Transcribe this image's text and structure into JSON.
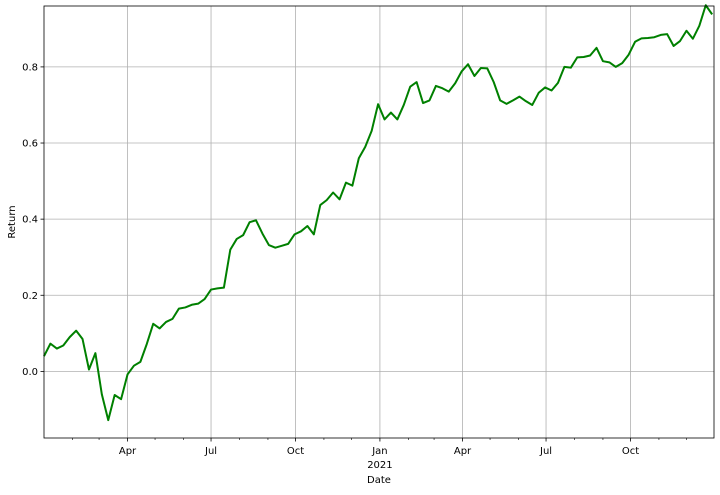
{
  "chart_data": {
    "type": "line",
    "xlabel": "Date",
    "ylabel": "Return",
    "grid": true,
    "line_color": "#008000",
    "xlim": [
      "2020-01-01",
      "2021-12-31"
    ],
    "ylim": [
      -0.175,
      0.96
    ],
    "y_ticks": [
      {
        "value": 0.0,
        "label": "0.0"
      },
      {
        "value": 0.2,
        "label": "0.2"
      },
      {
        "value": 0.4,
        "label": "0.4"
      },
      {
        "value": 0.6,
        "label": "0.6"
      },
      {
        "value": 0.8,
        "label": "0.8"
      }
    ],
    "x_major_ticks": [
      {
        "date": "2020-04-01",
        "label": "Apr"
      },
      {
        "date": "2020-07-01",
        "label": "Jul"
      },
      {
        "date": "2020-10-01",
        "label": "Oct"
      },
      {
        "date": "2021-01-01",
        "label": "Jan",
        "sublabel": "2021"
      },
      {
        "date": "2021-04-01",
        "label": "Apr"
      },
      {
        "date": "2021-07-01",
        "label": "Jul"
      },
      {
        "date": "2021-10-01",
        "label": "Oct"
      }
    ],
    "x_minor_ticks": [
      "2020-02-01",
      "2020-03-01",
      "2020-05-01",
      "2020-06-01",
      "2020-08-01",
      "2020-09-01",
      "2020-11-01",
      "2020-12-01",
      "2021-02-01",
      "2021-03-01",
      "2021-05-01",
      "2021-06-01",
      "2021-08-01",
      "2021-09-01",
      "2021-11-01",
      "2021-12-01"
    ],
    "series": [
      {
        "x": [
          "2020-01-01",
          "2020-01-08",
          "2020-01-15",
          "2020-01-22",
          "2020-01-29",
          "2020-02-05",
          "2020-02-12",
          "2020-02-19",
          "2020-02-26",
          "2020-03-04",
          "2020-03-11",
          "2020-03-18",
          "2020-03-25",
          "2020-04-01",
          "2020-04-08",
          "2020-04-15",
          "2020-04-22",
          "2020-04-29",
          "2020-05-06",
          "2020-05-13",
          "2020-05-20",
          "2020-05-27",
          "2020-06-03",
          "2020-06-10",
          "2020-06-17",
          "2020-06-24",
          "2020-07-01",
          "2020-07-08",
          "2020-07-15",
          "2020-07-22",
          "2020-07-29",
          "2020-08-05",
          "2020-08-12",
          "2020-08-19",
          "2020-08-26",
          "2020-09-02",
          "2020-09-09",
          "2020-09-16",
          "2020-09-23",
          "2020-09-30",
          "2020-10-07",
          "2020-10-14",
          "2020-10-21",
          "2020-10-28",
          "2020-11-04",
          "2020-11-11",
          "2020-11-18",
          "2020-11-25",
          "2020-12-02",
          "2020-12-09",
          "2020-12-16",
          "2020-12-23",
          "2020-12-30",
          "2021-01-06",
          "2021-01-13",
          "2021-01-20",
          "2021-01-27",
          "2021-02-03",
          "2021-02-10",
          "2021-02-17",
          "2021-02-24",
          "2021-03-03",
          "2021-03-10",
          "2021-03-17",
          "2021-03-24",
          "2021-03-31",
          "2021-04-07",
          "2021-04-14",
          "2021-04-21",
          "2021-04-28",
          "2021-05-05",
          "2021-05-12",
          "2021-05-19",
          "2021-05-26",
          "2021-06-02",
          "2021-06-09",
          "2021-06-16",
          "2021-06-23",
          "2021-06-30",
          "2021-07-07",
          "2021-07-14",
          "2021-07-21",
          "2021-07-28",
          "2021-08-04",
          "2021-08-11",
          "2021-08-18",
          "2021-08-25",
          "2021-09-01",
          "2021-09-08",
          "2021-09-15",
          "2021-09-22",
          "2021-09-29",
          "2021-10-06",
          "2021-10-13",
          "2021-10-20",
          "2021-10-27",
          "2021-11-03",
          "2021-11-10",
          "2021-11-17",
          "2021-11-24",
          "2021-12-01",
          "2021-12-08",
          "2021-12-15",
          "2021-12-22",
          "2021-12-29"
        ],
        "y": [
          0.04,
          0.073,
          0.06,
          0.068,
          0.09,
          0.107,
          0.085,
          0.005,
          0.048,
          -0.06,
          -0.128,
          -0.062,
          -0.073,
          -0.008,
          0.015,
          0.025,
          0.072,
          0.125,
          0.113,
          0.13,
          0.138,
          0.165,
          0.168,
          0.175,
          0.178,
          0.19,
          0.215,
          0.218,
          0.22,
          0.32,
          0.348,
          0.358,
          0.392,
          0.397,
          0.362,
          0.332,
          0.325,
          0.33,
          0.335,
          0.36,
          0.368,
          0.382,
          0.36,
          0.437,
          0.45,
          0.47,
          0.452,
          0.496,
          0.488,
          0.56,
          0.59,
          0.632,
          0.702,
          0.662,
          0.68,
          0.662,
          0.7,
          0.748,
          0.76,
          0.705,
          0.712,
          0.75,
          0.744,
          0.735,
          0.757,
          0.788,
          0.807,
          0.776,
          0.797,
          0.796,
          0.76,
          0.712,
          0.703,
          0.712,
          0.722,
          0.71,
          0.7,
          0.732,
          0.746,
          0.738,
          0.758,
          0.8,
          0.798,
          0.825,
          0.826,
          0.83,
          0.85,
          0.815,
          0.812,
          0.8,
          0.81,
          0.832,
          0.866,
          0.875,
          0.876,
          0.878,
          0.884,
          0.886,
          0.855,
          0.868,
          0.895,
          0.874,
          0.908,
          0.962,
          0.938
        ]
      }
    ]
  }
}
